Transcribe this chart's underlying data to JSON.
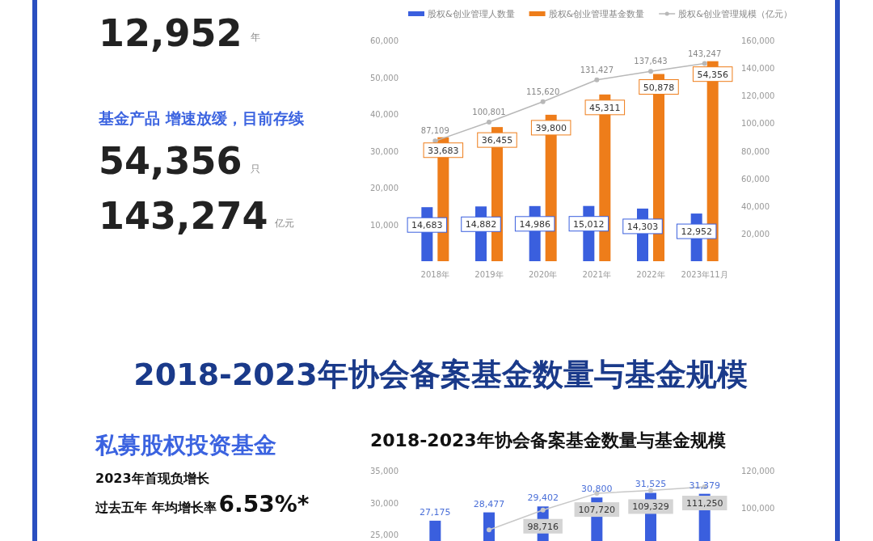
{
  "chart_data": [
    {
      "type": "other",
      "annotations": [
        "12,952",
        "年",
        "基金产品 增速放缓，目前存续",
        "54,356",
        "只",
        "143,274",
        "亿元"
      ]
    },
    {
      "type": "bar",
      "categories": [
        "2018年",
        "2019年",
        "2020年",
        "2021年",
        "2022年",
        "2023年11月"
      ],
      "series": [
        {
          "name": "股权&创业管理人数量",
          "type": "bar",
          "color": "#3a5fde",
          "values": [
            14683,
            14882,
            14986,
            15012,
            14303,
            12952
          ],
          "value_labels": [
            "14,683",
            "14,882",
            "14,986",
            "15,012",
            "14,303",
            "12,952"
          ]
        },
        {
          "name": "股权&创业管理基金数量",
          "type": "bar",
          "color": "#ee7d1a",
          "values": [
            33683,
            36455,
            39800,
            45311,
            50878,
            54356
          ],
          "value_labels": [
            "33,683",
            "36,455",
            "39,800",
            "45,311",
            "50,878",
            "54,356"
          ]
        },
        {
          "name": "股权&创业管理规模（亿元）",
          "type": "line",
          "axis": "y2",
          "color": "#b8b8b8",
          "values": [
            87109,
            100801,
            115620,
            131427,
            137643,
            143247
          ],
          "value_labels": [
            "87,109",
            "100,801",
            "115,620",
            "131,427",
            "137,643",
            "143,247"
          ]
        }
      ],
      "ylim": [
        0,
        60000
      ],
      "yticks": [
        {
          "value": 10000,
          "label": "10,000"
        },
        {
          "value": 20000,
          "label": "20,000"
        },
        {
          "value": 30000,
          "label": "30,000"
        },
        {
          "value": 40000,
          "label": "40,000"
        },
        {
          "value": 50000,
          "label": "50,000"
        },
        {
          "value": 60000,
          "label": "60,000"
        }
      ],
      "y2lim": [
        0,
        160000
      ],
      "y2ticks": [
        {
          "value": 20000,
          "label": "20,000"
        },
        {
          "value": 40000,
          "label": "40,000"
        },
        {
          "value": 60000,
          "label": "60,000"
        },
        {
          "value": 80000,
          "label": "80,000"
        },
        {
          "value": 100000,
          "label": "100,000"
        },
        {
          "value": 120000,
          "label": "120,000"
        },
        {
          "value": 140000,
          "label": "140,000"
        },
        {
          "value": 160000,
          "label": "160,000"
        }
      ],
      "legend": "top",
      "marker": "circle"
    },
    {
      "type": "other",
      "annotations": [
        "2018-2023年协会备案基金数量与基金规模",
        "私募股权投资基金",
        "2023年首现负增长",
        "过去五年 年均增长率",
        "6.53%*"
      ]
    },
    {
      "type": "bar",
      "title": "2018-2023年协会备案基金数量与基金规模",
      "categories": [
        null,
        null,
        null,
        null,
        null,
        null
      ],
      "series": [
        {
          "type": "bar",
          "color": "#3a5fde",
          "values": [
            27175,
            28477,
            29402,
            30800,
            31525,
            31379
          ],
          "value_labels": [
            "27,175",
            "28,477",
            "29,402",
            "30,800",
            "31,525",
            "31,379"
          ]
        },
        {
          "type": "line",
          "axis": "y2",
          "color": "#c8c8c8",
          "values": [
            null,
            88000,
            98716,
            107720,
            109329,
            111250
          ],
          "value_labels": [
            null,
            null,
            "98,716",
            "107,720",
            "109,329",
            "111,250"
          ]
        }
      ],
      "ylim": [
        24000,
        35000
      ],
      "yticks": [
        {
          "value": 25000,
          "label": "25,000"
        },
        {
          "value": 30000,
          "label": "30,000"
        },
        {
          "value": 35000,
          "label": "35,000"
        }
      ],
      "y2lim": [
        82000,
        120000
      ],
      "y2ticks": [
        {
          "value": 100000,
          "label": "100,000"
        },
        {
          "value": 120000,
          "label": "120,000"
        }
      ],
      "marker": "circle"
    }
  ]
}
